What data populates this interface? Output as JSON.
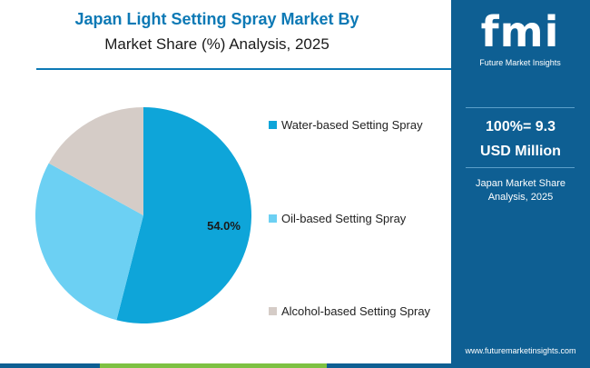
{
  "title": {
    "line1": "Japan Light Setting Spray Market By",
    "line2": "Market Share (%) Analysis, 2025"
  },
  "chart_data": {
    "type": "pie",
    "categories": [
      "Water-based Setting Spray",
      "Oil-based Setting Spray",
      "Alcohol-based Setting Spray"
    ],
    "values": [
      54.0,
      29.0,
      17.0
    ],
    "colors": [
      "#0ea5d9",
      "#6cd0f3",
      "#d5ccc7"
    ],
    "data_labels": [
      "54.0%",
      "",
      ""
    ],
    "legend_position": "right"
  },
  "side_panel": {
    "logo_letters": "fmi",
    "logo_text": "Future Market Insights",
    "total_line1": "100%= 9.3",
    "total_line2": "USD Million",
    "subtitle_line1": "Japan Market Share",
    "subtitle_line2": "Analysis, 2025",
    "url": "www.futuremarketinsights.com"
  },
  "colors": {
    "title": "#0d79b5",
    "panel": "#0e5f93",
    "bottom_bar": [
      "#0e5f93",
      "#7dc142",
      "#0e5f93"
    ]
  }
}
